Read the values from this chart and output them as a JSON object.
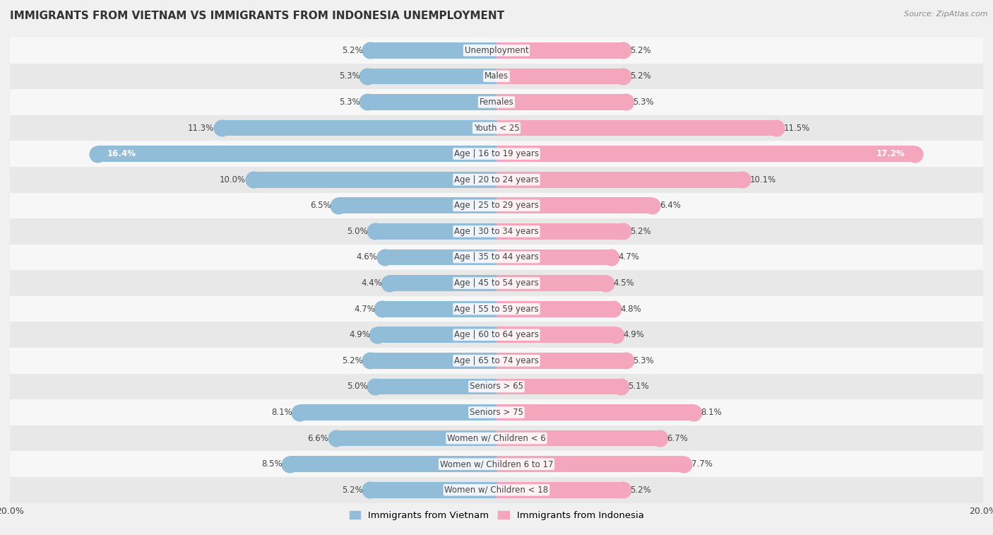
{
  "title": "IMMIGRANTS FROM VIETNAM VS IMMIGRANTS FROM INDONESIA UNEMPLOYMENT",
  "source": "Source: ZipAtlas.com",
  "categories": [
    "Unemployment",
    "Males",
    "Females",
    "Youth < 25",
    "Age | 16 to 19 years",
    "Age | 20 to 24 years",
    "Age | 25 to 29 years",
    "Age | 30 to 34 years",
    "Age | 35 to 44 years",
    "Age | 45 to 54 years",
    "Age | 55 to 59 years",
    "Age | 60 to 64 years",
    "Age | 65 to 74 years",
    "Seniors > 65",
    "Seniors > 75",
    "Women w/ Children < 6",
    "Women w/ Children 6 to 17",
    "Women w/ Children < 18"
  ],
  "vietnam_values": [
    5.2,
    5.3,
    5.3,
    11.3,
    16.4,
    10.0,
    6.5,
    5.0,
    4.6,
    4.4,
    4.7,
    4.9,
    5.2,
    5.0,
    8.1,
    6.6,
    8.5,
    5.2
  ],
  "indonesia_values": [
    5.2,
    5.2,
    5.3,
    11.5,
    17.2,
    10.1,
    6.4,
    5.2,
    4.7,
    4.5,
    4.8,
    4.9,
    5.3,
    5.1,
    8.1,
    6.7,
    7.7,
    5.2
  ],
  "vietnam_color": "#92bdd9",
  "indonesia_color": "#f4a7bc",
  "vietnam_dark_color": "#5a9ec9",
  "indonesia_dark_color": "#e8607a",
  "background_color": "#f0f0f0",
  "row_color_odd": "#f7f7f7",
  "row_color_even": "#e8e8e8",
  "max_value": 20.0,
  "legend_vietnam": "Immigrants from Vietnam",
  "legend_indonesia": "Immigrants from Indonesia",
  "bar_height": 0.62,
  "value_label_fontsize": 8.5,
  "category_fontsize": 8.5
}
